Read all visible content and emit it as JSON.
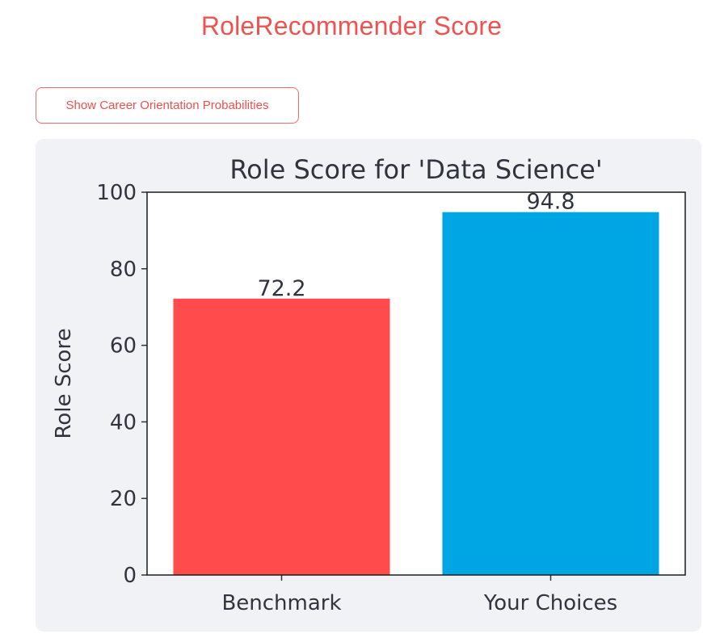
{
  "page": {
    "title": "RoleRecommender Score"
  },
  "controls": {
    "toggle_label": "Show Career Orientation Probabilities"
  },
  "colors": {
    "accent": "#ef5350",
    "panel_bg": "#f0f2f6",
    "benchmark_bar": "#ff4b4b",
    "choices_bar": "#00a6e3",
    "text": "#31333f"
  },
  "chart_data": {
    "type": "bar",
    "title": "Role Score for 'Data Science'",
    "xlabel": "",
    "ylabel": "Role Score",
    "categories": [
      "Benchmark",
      "Your Choices"
    ],
    "values": [
      72.2,
      94.8
    ],
    "value_labels": [
      "72.2",
      "94.8"
    ],
    "bar_colors": [
      "#ff4b4b",
      "#00a6e3"
    ],
    "ylim": [
      0,
      100
    ],
    "yticks": [
      0,
      20,
      40,
      60,
      80,
      100
    ],
    "grid": false,
    "legend": false
  }
}
